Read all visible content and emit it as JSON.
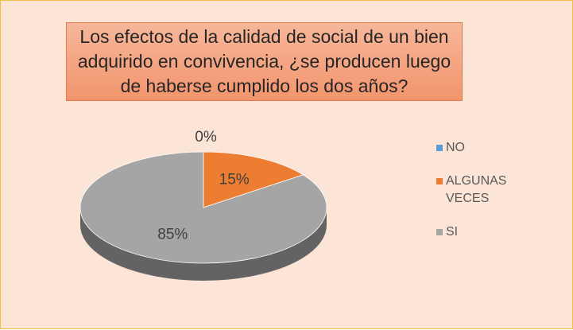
{
  "chart_data": {
    "type": "pie3d",
    "title": "Los efectos de la calidad de social de un bien adquirido en convivencia, ¿se producen luego de haberse cumplido los dos años?",
    "categories": [
      "NO",
      "ALGUNAS VECES",
      "SI"
    ],
    "values": [
      0,
      15,
      85
    ],
    "value_labels": [
      "0%",
      "15%",
      "85%"
    ],
    "colors": [
      "#5b9bd5",
      "#ed7d31",
      "#a5a5a5"
    ],
    "legend": "right"
  }
}
